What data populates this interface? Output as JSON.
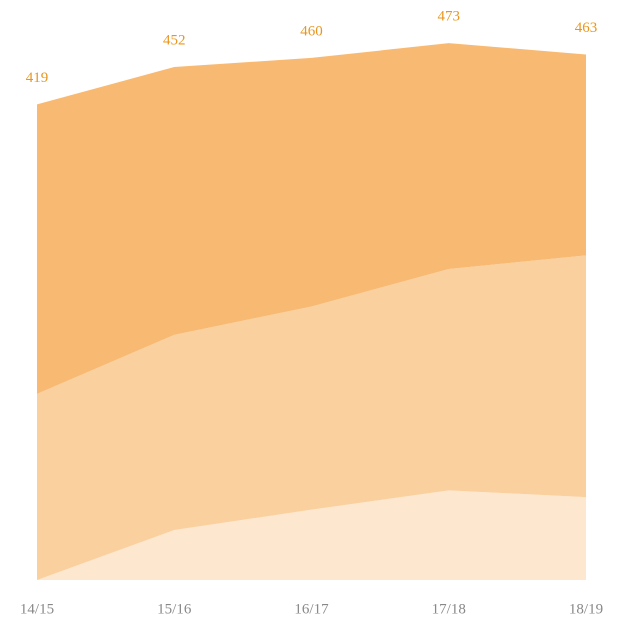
{
  "chart_data": {
    "type": "stacked_area",
    "categories": [
      "14/15",
      "15/16",
      "16/17",
      "17/18",
      "18/19"
    ],
    "series": [
      {
        "color": "#fde7cf",
        "values": [
          0,
          44,
          62,
          79,
          73
        ]
      },
      {
        "color": "#fad09e",
        "values": [
          164,
          172,
          179,
          195,
          213
        ]
      },
      {
        "color": "#f8b972",
        "values": [
          255,
          236,
          219,
          199,
          177
        ]
      }
    ],
    "totals": [
      419,
      452,
      460,
      473,
      463
    ],
    "total_color": "#e8961e",
    "ylim": [
      0,
      500
    ]
  }
}
